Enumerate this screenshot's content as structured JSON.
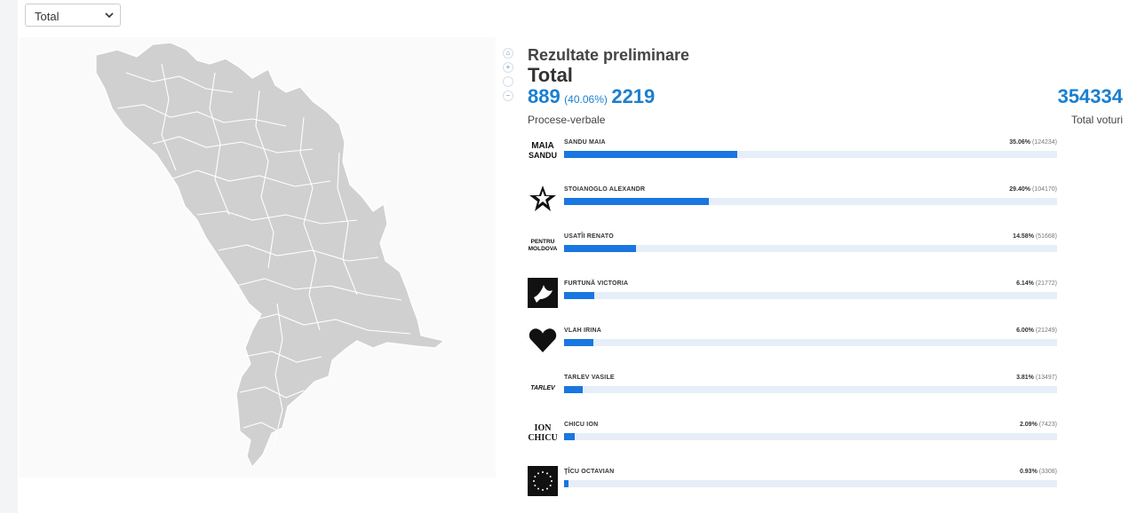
{
  "filter": {
    "selected": "Total"
  },
  "map_controls": [
    "home-icon",
    "zoom-in-icon",
    "zoom-out-icon"
  ],
  "results": {
    "heading": "Rezultate preliminare",
    "subheading": "Total",
    "processed": "889",
    "processed_pct": "(40.06%)",
    "total_pv": "2219",
    "pv_label": "Procese-verbale",
    "total_votes": "354334",
    "total_votes_label": "Total voturi"
  },
  "candidates": [
    {
      "name": "SANDU MAIA",
      "pct_label": "35.06%",
      "votes_label": "(124234)",
      "share": 35.06,
      "logo": "maia-sandu-logo",
      "logo_text": [
        "MAIA",
        "SANDU"
      ]
    },
    {
      "name": "STOIANOGLO ALEXANDR",
      "pct_label": "29.40%",
      "votes_label": "(104170)",
      "share": 29.4,
      "logo": "star-logo",
      "logo_text": []
    },
    {
      "name": "USATÎI RENATO",
      "pct_label": "14.58%",
      "votes_label": "(51668)",
      "share": 14.58,
      "logo": "pentru-moldova-logo",
      "logo_text": [
        "PENTRU",
        "MOLDOVA"
      ]
    },
    {
      "name": "FURTUNĂ VICTORIA",
      "pct_label": "6.14%",
      "votes_label": "(21772)",
      "share": 6.14,
      "logo": "dove-logo",
      "logo_text": []
    },
    {
      "name": "VLAH IRINA",
      "pct_label": "6.00%",
      "votes_label": "(21249)",
      "share": 6.0,
      "logo": "heart-logo",
      "logo_text": []
    },
    {
      "name": "TARLEV VASILE",
      "pct_label": "3.81%",
      "votes_label": "(13497)",
      "share": 3.81,
      "logo": "tarlev-logo",
      "logo_text": [
        "TARLEV"
      ]
    },
    {
      "name": "CHICU ION",
      "pct_label": "2.09%",
      "votes_label": "(7423)",
      "share": 2.09,
      "logo": "ion-chicu-logo",
      "logo_text": [
        "ION",
        "CHICU"
      ]
    },
    {
      "name": "ŢÎCU OCTAVIAN",
      "pct_label": "0.93%",
      "votes_label": "(3308)",
      "share": 0.93,
      "logo": "eu-stars-logo",
      "logo_text": []
    }
  ],
  "colors": {
    "accent": "#1a7fd0",
    "bar": "#1a76e0",
    "track": "#e6eef8",
    "map_fill": "#d0d0d0"
  }
}
